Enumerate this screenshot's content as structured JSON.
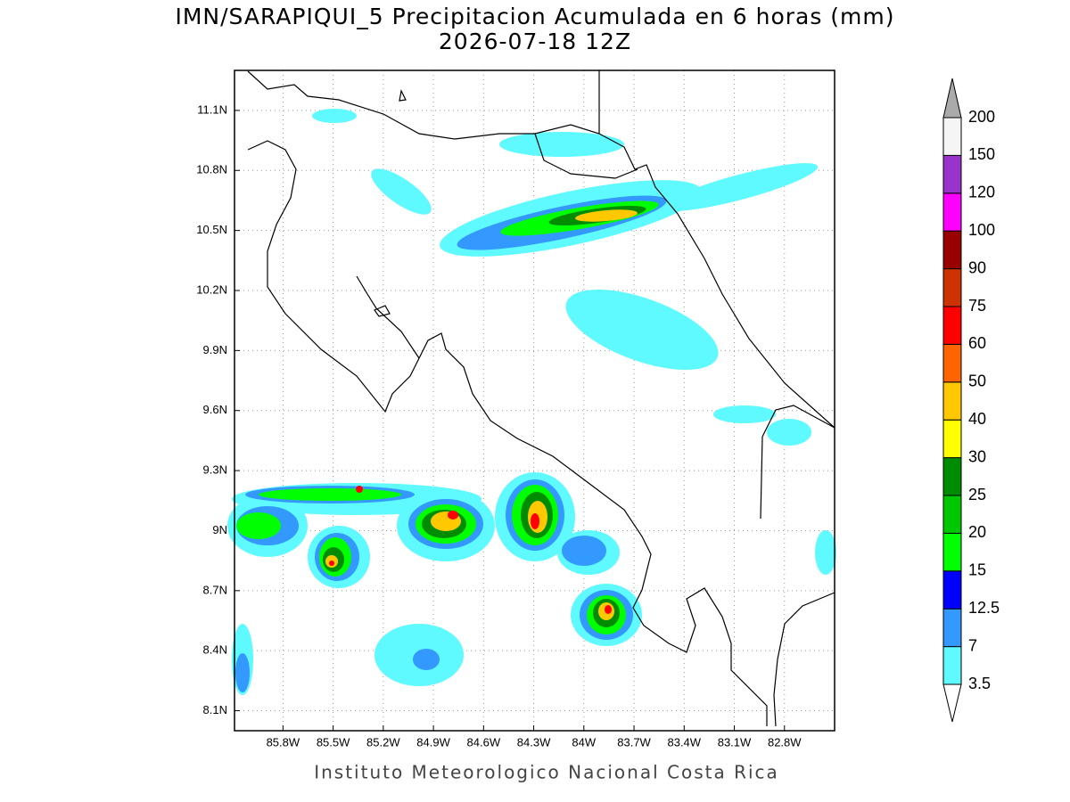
{
  "header": {
    "title": "IMN/SARAPIQUI_5 Precipitacion Acumulada en 6 horas (mm)",
    "subtitle": "2026-07-18 12Z"
  },
  "map": {
    "xlim": [
      -86.09,
      -82.5
    ],
    "ylim": [
      8.0,
      11.3
    ],
    "grid": true,
    "xticks": [
      {
        "value": -85.8,
        "label": "85.8W"
      },
      {
        "value": -85.5,
        "label": "85.5W"
      },
      {
        "value": -85.2,
        "label": "85.2W"
      },
      {
        "value": -84.9,
        "label": "84.9W"
      },
      {
        "value": -84.6,
        "label": "84.6W"
      },
      {
        "value": -84.3,
        "label": "84.3W"
      },
      {
        "value": -84.0,
        "label": "84W"
      },
      {
        "value": -83.7,
        "label": "83.7W"
      },
      {
        "value": -83.4,
        "label": "83.4W"
      },
      {
        "value": -83.1,
        "label": "83.1W"
      },
      {
        "value": -82.8,
        "label": "82.8W"
      }
    ],
    "yticks": [
      {
        "value": 11.1,
        "label": "11.1N"
      },
      {
        "value": 10.8,
        "label": "10.8N"
      },
      {
        "value": 10.5,
        "label": "10.5N"
      },
      {
        "value": 10.2,
        "label": "10.2N"
      },
      {
        "value": 9.9,
        "label": "9.9N"
      },
      {
        "value": 9.6,
        "label": "9.6N"
      },
      {
        "value": 9.3,
        "label": "9.3N"
      },
      {
        "value": 9.0,
        "label": "9N"
      },
      {
        "value": 8.7,
        "label": "8.7N"
      },
      {
        "value": 8.4,
        "label": "8.4N"
      },
      {
        "value": 8.1,
        "label": "8.1N"
      }
    ]
  },
  "legend": {
    "levels": [
      3.5,
      7,
      12.5,
      15,
      20,
      25,
      30,
      40,
      50,
      60,
      75,
      90,
      100,
      120,
      150,
      200
    ],
    "colors": [
      "#5ffaff",
      "#3399ff",
      "#0000ff",
      "#00ff00",
      "#00c800",
      "#008c00",
      "#ffff00",
      "#ffc800",
      "#ff6400",
      "#ff0000",
      "#cc3300",
      "#990000",
      "#ff00ff",
      "#9933cc",
      "#f5f5f5"
    ],
    "over_color": "#aaaaaa",
    "under_color": "#ffffff"
  },
  "footer": {
    "credit": "Instituto Meteorologico Nacional Costa Rica"
  }
}
